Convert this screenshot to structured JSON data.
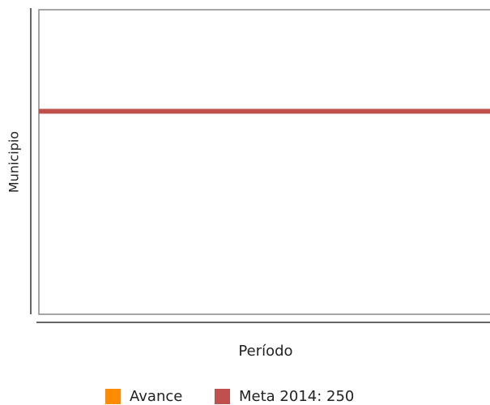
{
  "chart_data": {
    "type": "line",
    "y_label": "Municipio",
    "x_label": "Período",
    "ylim": [
      0,
      375
    ],
    "series": [
      {
        "name": "Avance",
        "color": "#ff8c00",
        "values": []
      },
      {
        "name": "Meta 2014: 250",
        "color": "#c0504d",
        "values": [
          250
        ]
      }
    ]
  }
}
